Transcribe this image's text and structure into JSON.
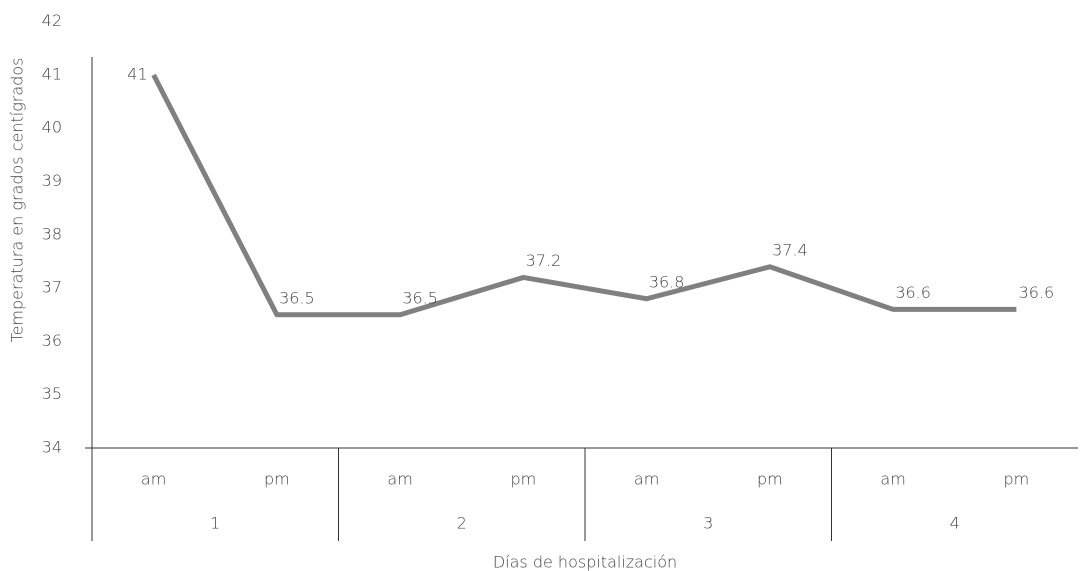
{
  "chart_data": {
    "type": "line",
    "x_label": "Días de hospitalización",
    "y_label": "Temperatura en grados centígrados",
    "categories": [
      "am",
      "pm",
      "am",
      "pm",
      "am",
      "pm",
      "am",
      "pm"
    ],
    "groups": [
      "1",
      "2",
      "3",
      "4"
    ],
    "series": [
      {
        "name": "Temperatura",
        "color": "#808080",
        "values": [
          41,
          36.5,
          36.5,
          37.2,
          36.8,
          37.4,
          36.6,
          36.6
        ]
      }
    ],
    "ylim": [
      34,
      42
    ],
    "yticks": [
      34,
      35,
      36,
      37,
      38,
      39,
      40,
      41,
      42
    ]
  }
}
